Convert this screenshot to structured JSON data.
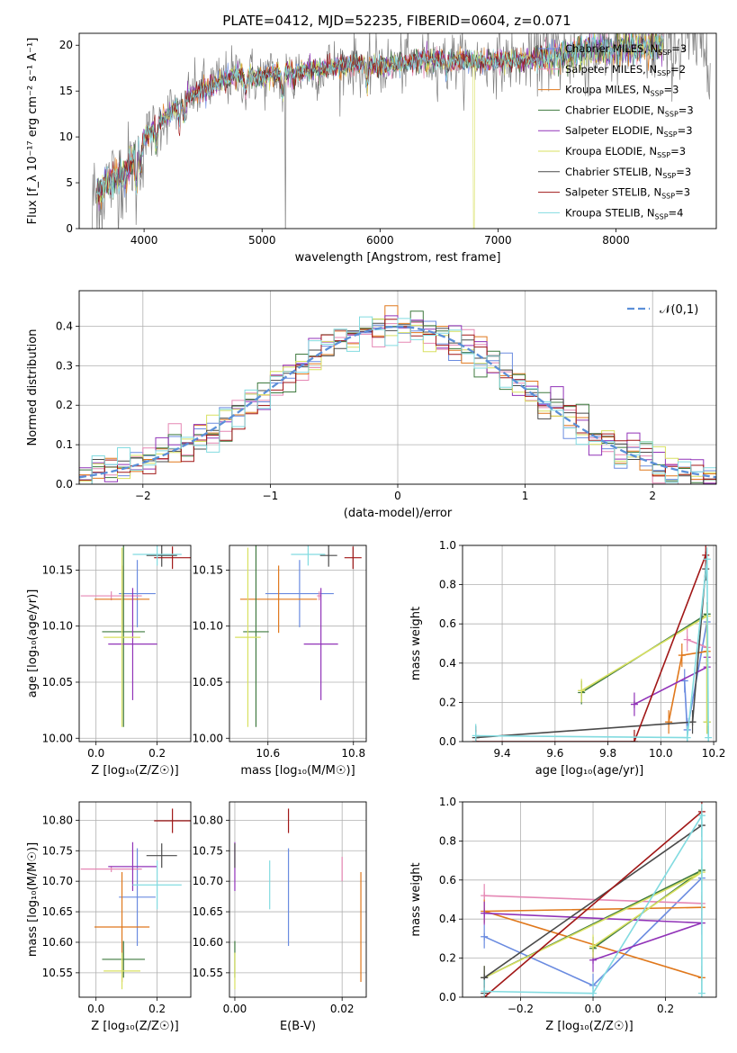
{
  "title": "PLATE=0412, MJD=52235, FIBERID=0604, z=0.071",
  "colors": {
    "Chabrier MILES": "#6a8be0",
    "Salpeter MILES": "#e587b4",
    "Kroupa MILES": "#e0781c",
    "Chabrier ELODIE": "#3f7a3f",
    "Salpeter ELODIE": "#9133b8",
    "Kroupa ELODIE": "#d8e060",
    "Chabrier STELIB": "#4a4a4a",
    "Salpeter STELIB": "#a11717",
    "Kroupa STELIB": "#82dbe0",
    "data": "#808080",
    "normal": "#5b8fd8"
  },
  "chart_data": [
    {
      "id": "spectrum",
      "type": "line",
      "title": "PLATE=0412, MJD=52235, FIBERID=0604, z=0.071",
      "xlabel": "wavelength [Angstrom, rest frame]",
      "ylabel": "Flux [f_λ 10⁻¹⁷ erg cm⁻² s⁻¹ A⁻¹]",
      "xlim": [
        3450,
        8850
      ],
      "ylim": [
        0,
        21.3
      ],
      "xticks": [
        4000,
        5000,
        6000,
        7000,
        8000
      ],
      "yticks": [
        0,
        5,
        10,
        15,
        20
      ],
      "legend_position": "top-right",
      "legend": [
        {
          "model": "Chabrier MILES",
          "nssp": "3"
        },
        {
          "model": "Salpeter MILES",
          "nssp": "2"
        },
        {
          "model": "Kroupa MILES",
          "nssp": "3"
        },
        {
          "model": "Chabrier ELODIE",
          "nssp": "3"
        },
        {
          "model": "Salpeter ELODIE",
          "nssp": "3"
        },
        {
          "model": "Kroupa ELODIE",
          "nssp": "3"
        },
        {
          "model": "Chabrier STELIB",
          "nssp": "3"
        },
        {
          "model": "Salpeter STELIB",
          "nssp": "3"
        },
        {
          "model": "Kroupa STELIB",
          "nssp": "4"
        }
      ],
      "continuum": {
        "x": [
          3550,
          3700,
          3850,
          3950,
          4050,
          4200,
          4400,
          4600,
          4800,
          5000,
          5200,
          5400,
          5600,
          5800,
          6000,
          6200,
          6400,
          6600,
          6800,
          7000,
          7200,
          7400,
          7600,
          7800,
          8000,
          8200,
          8400
        ],
        "y": [
          3.3,
          5.0,
          6.0,
          9.0,
          10.5,
          12.5,
          14.5,
          15.8,
          16.8,
          16.5,
          17.0,
          17.3,
          17.7,
          18.0,
          17.7,
          18.0,
          18.5,
          18.4,
          18.2,
          18.3,
          18.3,
          18.6,
          19.1,
          19.5,
          19.6,
          19.8,
          20.2
        ]
      }
    },
    {
      "id": "residual-histogram",
      "type": "bar",
      "xlabel": "(data-model)/error",
      "ylabel": "Normed distribution",
      "xlim": [
        -2.5,
        2.5
      ],
      "ylim": [
        0,
        0.49
      ],
      "xticks": [
        -2,
        -1,
        0,
        1,
        2
      ],
      "yticks": [
        0.0,
        0.1,
        0.2,
        0.3,
        0.4
      ],
      "bin_width": 0.1,
      "legend": "𝒩(0,1)",
      "legend_position": "top-right"
    },
    {
      "id": "age-vs-Z",
      "type": "scatter",
      "xlabel": "Z [log₁₀(Z/Z☉)]",
      "ylabel": "age  [log₁₀(age/yr)]",
      "xlim": [
        -0.055,
        0.31
      ],
      "ylim": [
        9.997,
        10.172
      ],
      "xticks": [
        0.0,
        0.2
      ],
      "yticks": [
        10.0,
        10.05,
        10.1,
        10.15
      ]
    },
    {
      "id": "age-vs-mass",
      "type": "scatter",
      "xlabel": "mass [log₁₀(M/M☉)]",
      "ylabel": "",
      "xlim": [
        10.51,
        10.83
      ],
      "ylim": [
        9.997,
        10.172
      ],
      "xticks": [
        10.6,
        10.8
      ],
      "yticks": [
        10.0,
        10.05,
        10.1,
        10.15
      ]
    },
    {
      "id": "weight-vs-age",
      "type": "line",
      "xlabel": "age  [log₁₀(age/yr)]",
      "ylabel": "mass weight",
      "xlim": [
        9.25,
        10.21
      ],
      "ylim": [
        0,
        1
      ],
      "xticks": [
        9.4,
        9.6,
        9.8,
        10.0,
        10.2
      ],
      "yticks": [
        0.0,
        0.2,
        0.4,
        0.6,
        0.8,
        1.0
      ]
    },
    {
      "id": "mass-vs-Z",
      "type": "scatter",
      "xlabel": "Z [log₁₀(Z/Z☉)]",
      "ylabel": "mass [log₁₀(M/M☉)]",
      "xlim": [
        -0.055,
        0.31
      ],
      "ylim": [
        10.51,
        10.83
      ],
      "xticks": [
        0.0,
        0.2
      ],
      "yticks": [
        10.55,
        10.6,
        10.65,
        10.7,
        10.75,
        10.8
      ]
    },
    {
      "id": "mass-vs-ebv",
      "type": "scatter",
      "xlabel": "E(B-V)",
      "ylabel": "",
      "xlim": [
        -0.001,
        0.0245
      ],
      "ylim": [
        10.51,
        10.83
      ],
      "xticks": [
        0.0,
        0.02
      ],
      "yticks": [
        10.55,
        10.6,
        10.65,
        10.7,
        10.75,
        10.8
      ]
    },
    {
      "id": "weight-vs-Z",
      "type": "line",
      "xlabel": "Z [log₁₀(Z/Z☉)]",
      "ylabel": "mass weight",
      "xlim": [
        -0.36,
        0.34
      ],
      "ylim": [
        0,
        1
      ],
      "xticks": [
        -0.2,
        0.0,
        0.2
      ],
      "yticks": [
        0.0,
        0.2,
        0.4,
        0.6,
        0.8,
        1.0
      ]
    }
  ],
  "fits": [
    {
      "model": "Chabrier MILES",
      "Z": 0.135,
      "Zerr": 0.06,
      "age": 10.129,
      "ageErr": 0.03,
      "mass": 10.674,
      "massErr": 0.08,
      "ebv": 0.01,
      "ssp": [
        {
          "age": 10.09,
          "Z": -0.3,
          "w": 0.31
        },
        {
          "age": 10.1,
          "Z": 0.0,
          "w": 0.06
        },
        {
          "age": 10.175,
          "Z": 0.3,
          "w": 0.61
        }
      ]
    },
    {
      "model": "Salpeter MILES",
      "Z": 0.05,
      "Zerr": 0.1,
      "age": 10.127,
      "ageErr": 0.0,
      "mass": 10.72,
      "massErr": 0.0,
      "ebv": 0.02,
      "ssp": [
        {
          "age": 10.1,
          "Z": -0.3,
          "w": 0.52
        },
        {
          "age": 10.175,
          "Z": 0.3,
          "w": 0.48
        }
      ]
    },
    {
      "model": "Kroupa MILES",
      "Z": 0.085,
      "Zerr": 0.09,
      "age": 10.124,
      "ageErr": 0.03,
      "mass": 10.625,
      "massErr": 0.09,
      "ebv": 0.0235,
      "ssp": [
        {
          "age": 10.03,
          "Z": 0.3,
          "w": 0.1
        },
        {
          "age": 10.08,
          "Z": -0.3,
          "w": 0.44
        },
        {
          "age": 10.175,
          "Z": 0.3,
          "w": 0.46
        }
      ]
    },
    {
      "model": "Chabrier ELODIE",
      "Z": 0.09,
      "Zerr": 0.07,
      "age": 10.095,
      "ageErr": 0.085,
      "mass": 10.572,
      "massErr": 0.03,
      "ebv": 0.0,
      "ssp": [
        {
          "age": 9.7,
          "Z": 0.0,
          "w": 0.25
        },
        {
          "age": 10.175,
          "Z": 0.3,
          "w": 0.65
        },
        {
          "age": 10.175,
          "Z": -0.3,
          "w": 0.1
        }
      ]
    },
    {
      "model": "Salpeter ELODIE",
      "Z": 0.12,
      "Zerr": 0.08,
      "age": 10.084,
      "ageErr": 0.05,
      "mass": 10.724,
      "massErr": 0.04,
      "ebv": 0.0,
      "ssp": [
        {
          "age": 9.9,
          "Z": 0.0,
          "w": 0.19
        },
        {
          "age": 10.175,
          "Z": 0.3,
          "w": 0.38
        },
        {
          "age": 10.175,
          "Z": -0.3,
          "w": 0.43
        }
      ]
    },
    {
      "model": "Kroupa ELODIE",
      "Z": 0.085,
      "Zerr": 0.06,
      "age": 10.09,
      "ageErr": 0.08,
      "mass": 10.553,
      "massErr": 0.03,
      "ebv": 0.0,
      "ssp": [
        {
          "age": 9.7,
          "Z": 0.0,
          "w": 0.26
        },
        {
          "age": 10.175,
          "Z": 0.3,
          "w": 0.64
        },
        {
          "age": 10.175,
          "Z": -0.3,
          "w": 0.1
        }
      ]
    },
    {
      "model": "Chabrier STELIB",
      "Z": 0.215,
      "Zerr": 0.05,
      "age": 10.163,
      "ageErr": 0.01,
      "mass": 10.742,
      "massErr": 0.02,
      "ebv": 0.0,
      "ssp": [
        {
          "age": 9.3,
          "Z": -0.3,
          "w": 0.02
        },
        {
          "age": 10.12,
          "Z": -0.3,
          "w": 0.1
        },
        {
          "age": 10.17,
          "Z": 0.3,
          "w": 0.88
        }
      ]
    },
    {
      "model": "Salpeter STELIB",
      "Z": 0.25,
      "Zerr": 0.06,
      "age": 10.161,
      "ageErr": 0.01,
      "mass": 10.799,
      "massErr": 0.02,
      "ebv": 0.01,
      "ssp": [
        {
          "age": 9.3,
          "Z": -0.3,
          "w": 0.0
        },
        {
          "age": 9.9,
          "Z": -0.3,
          "w": 0.0
        },
        {
          "age": 10.17,
          "Z": 0.3,
          "w": 0.95
        }
      ]
    },
    {
      "model": "Kroupa STELIB",
      "Z": 0.2,
      "Zerr": 0.08,
      "age": 10.164,
      "ageErr": 0.01,
      "mass": 10.694,
      "massErr": 0.04,
      "ebv": 0.0065,
      "ssp": [
        {
          "age": 9.3,
          "Z": -0.3,
          "w": 0.03
        },
        {
          "age": 10.1,
          "Z": 0.0,
          "w": 0.02
        },
        {
          "age": 10.175,
          "Z": 0.3,
          "w": 0.93
        },
        {
          "age": 10.18,
          "Z": 0.3,
          "w": 0.02
        }
      ]
    }
  ]
}
